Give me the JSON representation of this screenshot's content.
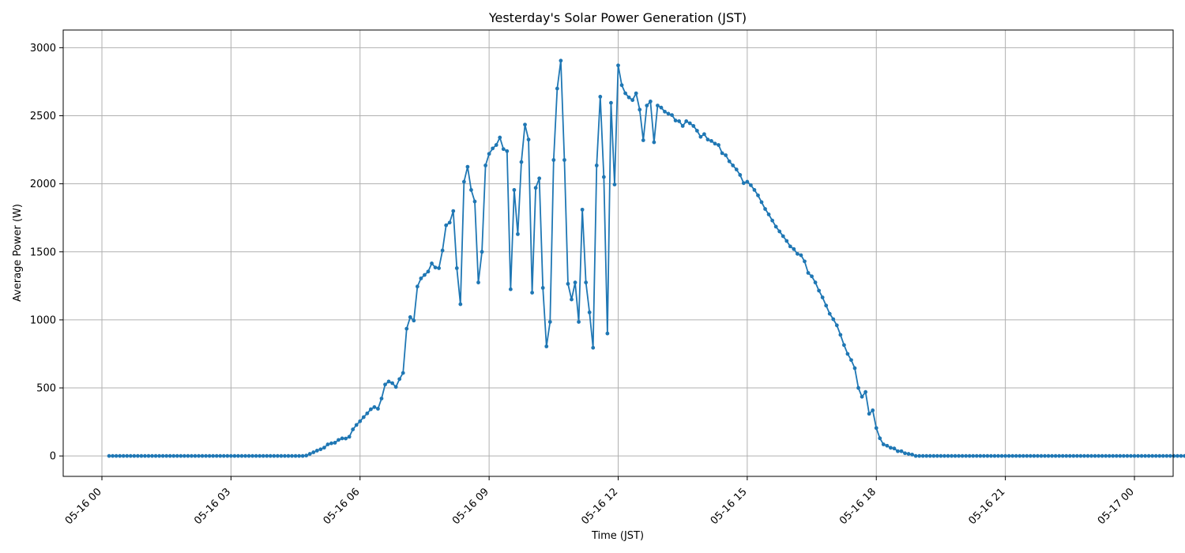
{
  "chart_data": {
    "type": "line",
    "title": "Yesterday's Solar Power Generation (JST)",
    "xlabel": "Time (JST)",
    "ylabel": "Average Power (W)",
    "xlim": [
      "05-15 23:06",
      "05-17 00:54"
    ],
    "ylim": [
      -150,
      3130
    ],
    "grid": true,
    "color": "#1f77b4",
    "x_ticks": [
      "05-16 00",
      "05-16 03",
      "05-16 06",
      "05-16 09",
      "05-16 12",
      "05-16 15",
      "05-16 18",
      "05-16 21",
      "05-17 00"
    ],
    "y_ticks": [
      0,
      500,
      1000,
      1500,
      2000,
      2500,
      3000
    ],
    "sample_interval_minutes": 5,
    "series": [
      {
        "x_start": "05-16 00:10",
        "x_end": "05-17 00:00",
        "values": [
          0,
          0,
          0,
          0,
          0,
          0,
          0,
          0,
          0,
          0,
          0,
          0,
          0,
          0,
          0,
          0,
          0,
          0,
          0,
          0,
          0,
          0,
          0,
          0,
          0,
          0,
          0,
          0,
          0,
          0,
          0,
          0,
          0,
          0,
          0,
          0,
          0,
          0,
          0,
          0,
          0,
          0,
          0,
          0,
          0,
          0,
          0,
          0,
          0,
          0,
          0,
          0,
          0,
          0,
          0,
          3,
          15,
          27,
          39,
          49,
          61,
          85,
          93,
          97,
          118,
          129,
          128,
          141,
          195,
          228,
          255,
          285,
          313,
          343,
          359,
          347,
          422,
          525,
          547,
          535,
          507,
          565,
          610,
          935,
          1020,
          995,
          1245,
          1305,
          1330,
          1355,
          1415,
          1385,
          1380,
          1510,
          1695,
          1715,
          1800,
          1380,
          1115,
          2015,
          2125,
          1955,
          1870,
          1275,
          1500,
          2135,
          2220,
          2260,
          2285,
          2340,
          2255,
          2240,
          1225,
          1955,
          1630,
          2160,
          2435,
          2325,
          1200,
          1970,
          2040,
          1235,
          805,
          985,
          2175,
          2700,
          2905,
          2175,
          1265,
          1150,
          1275,
          985,
          1810,
          1275,
          1055,
          795,
          2135,
          2640,
          2050,
          900,
          2595,
          1995,
          2870,
          2725,
          2665,
          2635,
          2615,
          2665,
          2545,
          2320,
          2575,
          2605,
          2305,
          2575,
          2560,
          2530,
          2515,
          2505,
          2465,
          2460,
          2425,
          2460,
          2445,
          2425,
          2390,
          2345,
          2365,
          2325,
          2315,
          2295,
          2285,
          2225,
          2210,
          2165,
          2135,
          2105,
          2065,
          2005,
          2015,
          1990,
          1955,
          1915,
          1865,
          1815,
          1775,
          1730,
          1685,
          1650,
          1615,
          1580,
          1540,
          1520,
          1485,
          1475,
          1430,
          1345,
          1320,
          1275,
          1215,
          1165,
          1105,
          1045,
          1005,
          960,
          890,
          815,
          750,
          705,
          645,
          500,
          435,
          470,
          310,
          335,
          205,
          130,
          85,
          75,
          60,
          55,
          35,
          35,
          20,
          15,
          10,
          0,
          0,
          0,
          0,
          0,
          0,
          0,
          0,
          0,
          0,
          0,
          0,
          0,
          0,
          0,
          0,
          0,
          0,
          0,
          0,
          0,
          0,
          0,
          0,
          0,
          0,
          0,
          0,
          0,
          0,
          0,
          0,
          0,
          0,
          0,
          0,
          0,
          0,
          0,
          0,
          0,
          0,
          0,
          0,
          0,
          0,
          0,
          0,
          0,
          0,
          0,
          0,
          0,
          0,
          0,
          0,
          0,
          0,
          0,
          0,
          0,
          0,
          0,
          0,
          0,
          0,
          0,
          0,
          0,
          0,
          0,
          0,
          0,
          0,
          0,
          0,
          0,
          0,
          0,
          0,
          0,
          0
        ]
      }
    ]
  }
}
